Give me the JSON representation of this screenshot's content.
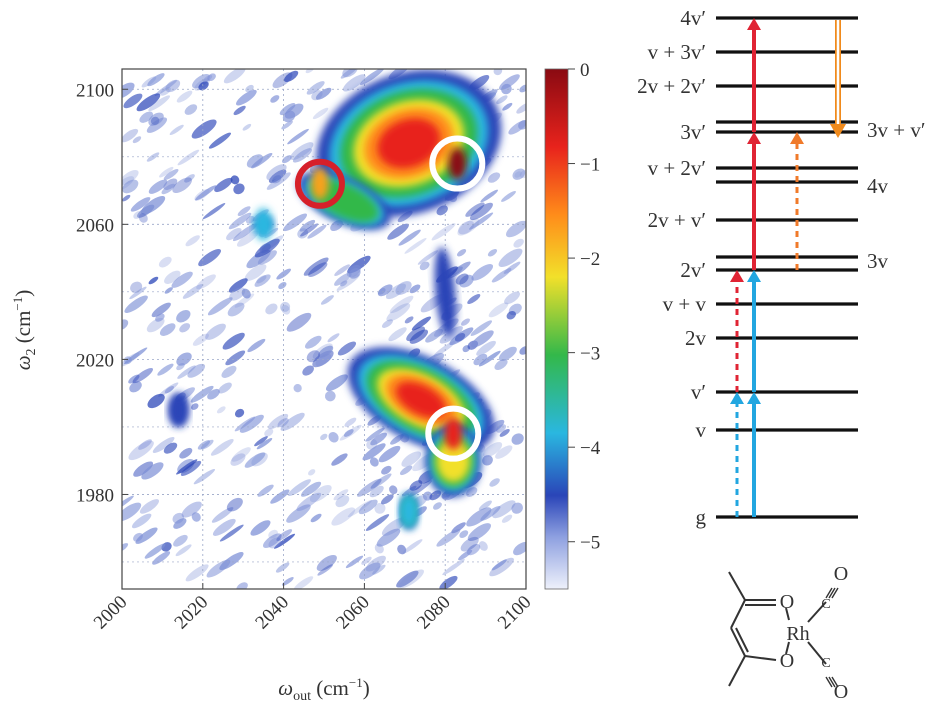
{
  "chart_data": [
    {
      "type": "heatmap",
      "xlabel": "ωout (cm−1)",
      "ylabel": "ω2 (cm−1)",
      "xlim": [
        2000,
        2100
      ],
      "ylim": [
        1952,
        2106
      ],
      "x_ticks": [
        2000,
        2020,
        2040,
        2060,
        2080,
        2100
      ],
      "y_ticks": [
        1980,
        2020,
        2060,
        2100
      ],
      "grid": true,
      "colorbar": {
        "range": [
          -5.5,
          0
        ],
        "ticks": [
          0,
          -1,
          -2,
          -3,
          -4,
          -5
        ],
        "tick_labels": [
          "0",
          "−1",
          "−2",
          "−3",
          "−4",
          "−5"
        ],
        "colors": [
          "#eef1fb",
          "#2a45b8",
          "#2ab7e0",
          "#33b84a",
          "#f2e02a",
          "#ff8c1a",
          "#e8231c",
          "#8a0a12"
        ]
      },
      "features": [
        {
          "x": 2083,
          "y": 2078,
          "value": 0,
          "marker": "white circle"
        },
        {
          "x": 2082,
          "y": 1998,
          "value": -0.7,
          "marker": "white circle"
        },
        {
          "x": 2049,
          "y": 2072,
          "value": -1.8,
          "marker": "red circle"
        },
        {
          "x": 2035,
          "y": 2060,
          "value": -3.8
        },
        {
          "x": 2014,
          "y": 2005,
          "value": -4.6
        },
        {
          "x": 2071,
          "y": 1975,
          "value": -3.7
        }
      ]
    },
    {
      "type": "diagram",
      "levels": [
        {
          "label": "4v′",
          "side": "left"
        },
        {
          "label": "v + 3v′",
          "side": "left"
        },
        {
          "label": "2v + 2v′",
          "side": "left"
        },
        {
          "label": "3v + v′",
          "side": "right"
        },
        {
          "label": "3v′",
          "side": "left"
        },
        {
          "label": "v + 2v′",
          "side": "left"
        },
        {
          "label": "4v",
          "side": "right"
        },
        {
          "label": "2v + v′",
          "side": "left"
        },
        {
          "label": "3v",
          "side": "right"
        },
        {
          "label": "2v′",
          "side": "left"
        },
        {
          "label": "v + v",
          "side": "left"
        },
        {
          "label": "2v",
          "side": "left"
        },
        {
          "label": "v′",
          "side": "left"
        },
        {
          "label": "v",
          "side": "left"
        },
        {
          "label": "g",
          "side": "left"
        }
      ],
      "molecule": {
        "atoms": [
          "O",
          "O",
          "Rh",
          "C",
          "O",
          "C",
          "O"
        ]
      }
    }
  ]
}
